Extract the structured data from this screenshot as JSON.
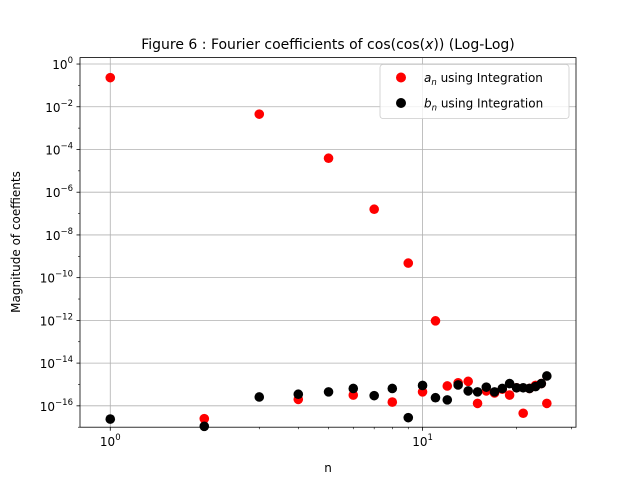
{
  "chart_data": {
    "type": "scatter",
    "title": "Figure 6 : Fourier coefficients of cos(cos(x))  (Log-Log)",
    "title_parts": {
      "prefix": "Figure 6 : Fourier coefficients of cos(cos(",
      "var": "x",
      "suffix": "))  (Log-Log)"
    },
    "xlabel": "n",
    "ylabel": "Magnitude of coeffients",
    "xscale": "log",
    "yscale": "log",
    "xlim": [
      0.8,
      31
    ],
    "ylim": [
      1e-17,
      2
    ],
    "grid": true,
    "legend_position": "top-right",
    "x_ticks": [
      {
        "value": 1,
        "base": "10",
        "exp": "0"
      },
      {
        "value": 10,
        "base": "10",
        "exp": "1"
      }
    ],
    "y_ticks": [
      {
        "value": 1,
        "base": "10",
        "exp": "0"
      },
      {
        "value": 0.01,
        "base": "10",
        "exp": "−2"
      },
      {
        "value": 0.0001,
        "base": "10",
        "exp": "−4"
      },
      {
        "value": 1e-06,
        "base": "10",
        "exp": "−6"
      },
      {
        "value": 1e-08,
        "base": "10",
        "exp": "−8"
      },
      {
        "value": 1e-10,
        "base": "10",
        "exp": "−10"
      },
      {
        "value": 1e-12,
        "base": "10",
        "exp": "−12"
      },
      {
        "value": 1e-14,
        "base": "10",
        "exp": "−14"
      },
      {
        "value": 1e-16,
        "base": "10",
        "exp": "−16"
      }
    ],
    "series": [
      {
        "name": "a_n using Integration",
        "legend_sym": "a",
        "legend_sub": "n",
        "legend_rest": " using Integration",
        "color": "#ff0000",
        "x": [
          1,
          2,
          3,
          4,
          5,
          6,
          7,
          8,
          9,
          10,
          11,
          12,
          13,
          14,
          15,
          16,
          17,
          18,
          19,
          20,
          21,
          22,
          23,
          24,
          25
        ],
        "y": [
          0.23,
          2.5e-17,
          0.0045,
          2e-16,
          3.9e-05,
          3.2e-16,
          1.6e-07,
          1.5e-16,
          4.8e-10,
          4.5e-16,
          9.5e-13,
          8.5e-16,
          1.2e-15,
          1.4e-15,
          1.3e-16,
          5e-16,
          4e-16,
          6e-16,
          3.2e-16,
          7e-16,
          4.5e-17,
          6.5e-16,
          9e-16,
          1.1e-15,
          1.3e-16
        ]
      },
      {
        "name": "b_n using Integration",
        "legend_sym": "b",
        "legend_sub": "n",
        "legend_rest": " using Integration",
        "color": "#000000",
        "x": [
          1,
          2,
          3,
          4,
          5,
          6,
          7,
          8,
          9,
          10,
          11,
          12,
          13,
          14,
          15,
          16,
          17,
          18,
          19,
          20,
          21,
          22,
          23,
          24,
          25
        ],
        "y": [
          2.4e-17,
          1.1e-17,
          2.6e-16,
          3.5e-16,
          4.5e-16,
          6.5e-16,
          3e-16,
          6.5e-16,
          2.8e-17,
          9e-16,
          2.4e-16,
          1.9e-16,
          9.5e-16,
          5e-16,
          4.5e-16,
          7.5e-16,
          4.5e-16,
          6.5e-16,
          1.1e-15,
          7e-16,
          7e-16,
          6.5e-16,
          8e-16,
          1.1e-15,
          2.5e-15
        ]
      }
    ]
  }
}
